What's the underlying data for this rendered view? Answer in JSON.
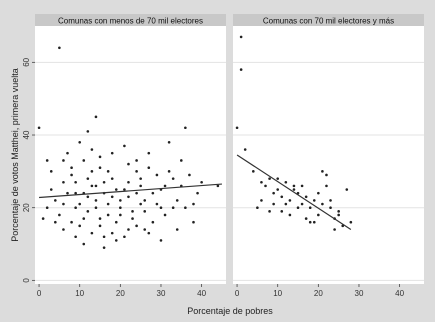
{
  "colors": {
    "outer_background": "#dcdcdc",
    "plot_background": "#ffffff",
    "strip_background": "#c8c8c8",
    "grid": "#e3e3e3",
    "points": "#222222",
    "fit_line": "#333333"
  },
  "chart_data": [
    {
      "type": "scatter",
      "title": "Comunas con menos de 70 mil electores",
      "xlabel": "Porcentaje de pobres",
      "ylabel": "Porcentaje de votos Matthei, primera vuelta",
      "xlim": [
        -1,
        46
      ],
      "ylim": [
        -1,
        70
      ],
      "x_ticks": [
        0,
        10,
        20,
        30,
        40
      ],
      "y_ticks": [
        0,
        20,
        40,
        60
      ],
      "grid": true,
      "fit_line": {
        "x": [
          0,
          45
        ],
        "y": [
          22.8,
          26.5
        ]
      },
      "points": [
        [
          5,
          64
        ],
        [
          0,
          42
        ],
        [
          14,
          45
        ],
        [
          36,
          42
        ],
        [
          2,
          33
        ],
        [
          3,
          30
        ],
        [
          10,
          38
        ],
        [
          11,
          33
        ],
        [
          12,
          41
        ],
        [
          6,
          33
        ],
        [
          21,
          37
        ],
        [
          27,
          35
        ],
        [
          32,
          38
        ],
        [
          8,
          29
        ],
        [
          15,
          31
        ],
        [
          18,
          28
        ],
        [
          24,
          30
        ],
        [
          29,
          29
        ],
        [
          33,
          28
        ],
        [
          35,
          26
        ],
        [
          37,
          29
        ],
        [
          40,
          27
        ],
        [
          44,
          26
        ],
        [
          4,
          22
        ],
        [
          7,
          24
        ],
        [
          9,
          27
        ],
        [
          13,
          26
        ],
        [
          16,
          24
        ],
        [
          19,
          25
        ],
        [
          22,
          23
        ],
        [
          25,
          26
        ],
        [
          26,
          22
        ],
        [
          28,
          24
        ],
        [
          30,
          25
        ],
        [
          34,
          22
        ],
        [
          1,
          17
        ],
        [
          2,
          20
        ],
        [
          5,
          18
        ],
        [
          8,
          16
        ],
        [
          10,
          21
        ],
        [
          12,
          19
        ],
        [
          14,
          22
        ],
        [
          17,
          18
        ],
        [
          20,
          20
        ],
        [
          23,
          17
        ],
        [
          26,
          19
        ],
        [
          31,
          18
        ],
        [
          34,
          14
        ],
        [
          38,
          16
        ],
        [
          6,
          14
        ],
        [
          9,
          12
        ],
        [
          13,
          13
        ],
        [
          15,
          15
        ],
        [
          18,
          13
        ],
        [
          21,
          12
        ],
        [
          24,
          15
        ],
        [
          27,
          13
        ],
        [
          30,
          11
        ],
        [
          11,
          10
        ],
        [
          16,
          9
        ],
        [
          19,
          11
        ],
        [
          8,
          31
        ],
        [
          12,
          28
        ],
        [
          17,
          30
        ],
        [
          22,
          32
        ],
        [
          3,
          25
        ],
        [
          6,
          21
        ],
        [
          11,
          24
        ],
        [
          14,
          20
        ],
        [
          20,
          22
        ],
        [
          25,
          28
        ],
        [
          29,
          21
        ],
        [
          32,
          30
        ],
        [
          36,
          20
        ],
        [
          39,
          24
        ],
        [
          16,
          27
        ],
        [
          10,
          15
        ],
        [
          23,
          19
        ],
        [
          28,
          16
        ],
        [
          18,
          35
        ],
        [
          13,
          36
        ],
        [
          24,
          33
        ],
        [
          7,
          35
        ],
        [
          9,
          20
        ],
        [
          15,
          17
        ],
        [
          19,
          16
        ],
        [
          22,
          27
        ],
        [
          26,
          14
        ],
        [
          12,
          23
        ],
        [
          17,
          21
        ],
        [
          21,
          25
        ],
        [
          31,
          26
        ],
        [
          33,
          20
        ],
        [
          38,
          21
        ],
        [
          4,
          16
        ],
        [
          27,
          31
        ],
        [
          14,
          26
        ],
        [
          20,
          18
        ],
        [
          11,
          17
        ],
        [
          16,
          12
        ],
        [
          25,
          21
        ],
        [
          30,
          20
        ],
        [
          18,
          23
        ],
        [
          13,
          30
        ],
        [
          9,
          24
        ],
        [
          6,
          27
        ],
        [
          35,
          33
        ],
        [
          24,
          24
        ],
        [
          22,
          14
        ],
        [
          15,
          34
        ]
      ]
    },
    {
      "type": "scatter",
      "title": "Comunas con 70 mil electores y más",
      "xlabel": "Porcentaje de pobres",
      "ylabel": "Porcentaje de votos Matthei, primera vuelta",
      "xlim": [
        -1,
        46
      ],
      "ylim": [
        -1,
        70
      ],
      "x_ticks": [
        0,
        10,
        20,
        30,
        40
      ],
      "y_ticks": [
        0,
        20,
        40,
        60
      ],
      "grid": true,
      "fit_line": {
        "x": [
          0,
          28
        ],
        "y": [
          34.5,
          14
        ]
      },
      "points": [
        [
          1,
          67
        ],
        [
          1,
          58
        ],
        [
          0,
          42
        ],
        [
          2,
          36
        ],
        [
          4,
          30
        ],
        [
          6,
          27
        ],
        [
          7,
          26
        ],
        [
          8,
          28
        ],
        [
          9,
          24
        ],
        [
          10,
          25
        ],
        [
          11,
          23
        ],
        [
          12,
          27
        ],
        [
          13,
          22
        ],
        [
          14,
          26
        ],
        [
          15,
          24
        ],
        [
          16,
          21
        ],
        [
          17,
          23
        ],
        [
          18,
          20
        ],
        [
          19,
          22
        ],
        [
          20,
          18
        ],
        [
          21,
          30
        ],
        [
          22,
          29
        ],
        [
          23,
          20
        ],
        [
          24,
          17
        ],
        [
          25,
          19
        ],
        [
          26,
          15
        ],
        [
          27,
          25
        ],
        [
          28,
          16
        ],
        [
          5,
          20
        ],
        [
          9,
          21
        ],
        [
          11,
          19
        ],
        [
          13,
          18
        ],
        [
          15,
          20
        ],
        [
          17,
          17
        ],
        [
          19,
          16
        ],
        [
          21,
          21
        ],
        [
          23,
          22
        ],
        [
          25,
          18
        ],
        [
          10,
          28
        ],
        [
          14,
          25
        ],
        [
          16,
          26
        ],
        [
          18,
          16
        ],
        [
          20,
          24
        ],
        [
          12,
          21
        ],
        [
          8,
          19
        ],
        [
          6,
          22
        ],
        [
          22,
          26
        ],
        [
          24,
          14
        ]
      ]
    }
  ]
}
